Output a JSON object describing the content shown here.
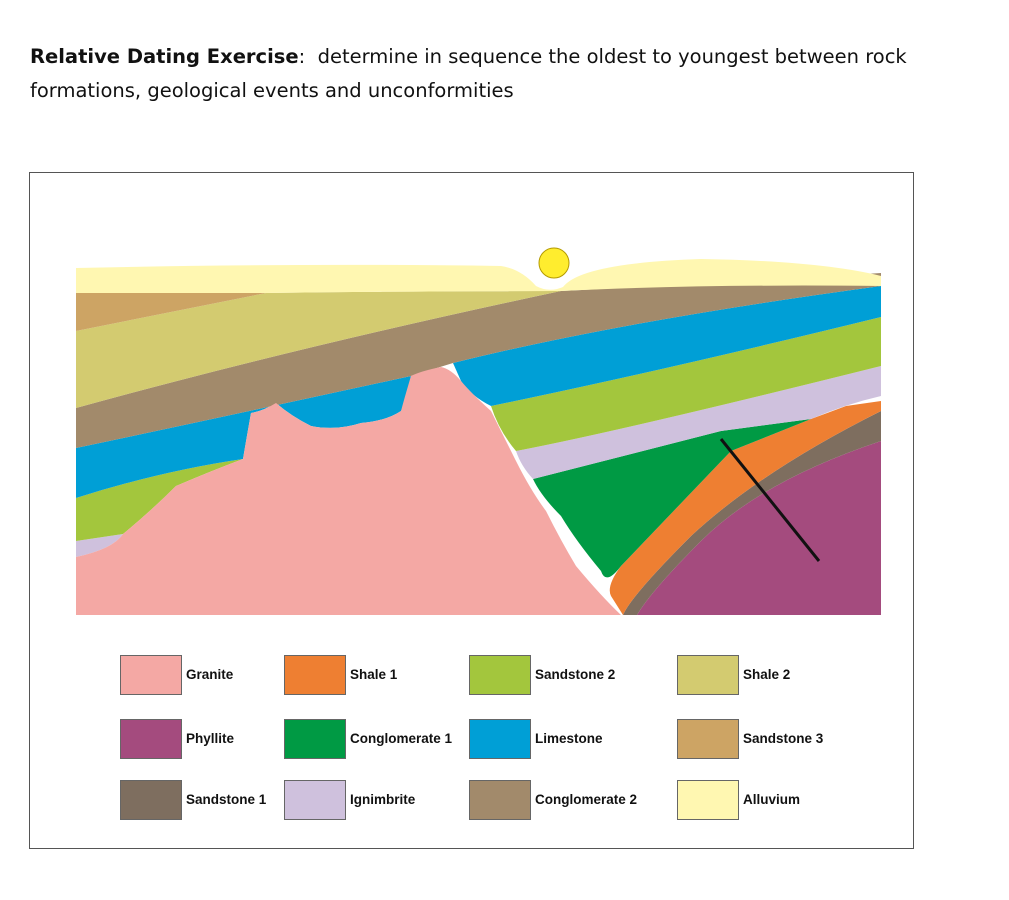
{
  "heading": {
    "bold": "Relative Dating Exercise",
    "colon": ":",
    "text": "  determine in sequence the oldest to youngest between rock formations, geological events and unconformities"
  },
  "colors": {
    "granite": "#F4A8A4",
    "phyllite": "#A44B7E",
    "sandstone1": "#7E6E5F",
    "shale1": "#EE7F32",
    "conglomerate1": "#009A44",
    "ignimbrite": "#CFC1DD",
    "sandstone2": "#A3C63D",
    "limestone": "#009FD6",
    "conglomerate2": "#A28A6B",
    "shale2": "#D3CB70",
    "sandstone3": "#CDA464",
    "alluvium": "#FFF7B1",
    "fault": "#111111",
    "sun": "#FFED2E"
  },
  "legend": [
    {
      "key": "granite",
      "label": "Granite"
    },
    {
      "key": "shale1",
      "label": "Shale 1"
    },
    {
      "key": "sandstone2",
      "label": "Sandstone 2"
    },
    {
      "key": "shale2",
      "label": "Shale 2"
    },
    {
      "key": "phyllite",
      "label": "Phyllite"
    },
    {
      "key": "conglomerate1",
      "label": "Conglomerate 1"
    },
    {
      "key": "limestone",
      "label": "Limestone"
    },
    {
      "key": "sandstone3",
      "label": "Sandstone 3"
    },
    {
      "key": "sandstone1",
      "label": "Sandstone 1"
    },
    {
      "key": "ignimbrite",
      "label": "Ignimbrite"
    },
    {
      "key": "conglomerate2",
      "label": "Conglomerate 2"
    },
    {
      "key": "alluvium",
      "label": "Alluvium"
    }
  ]
}
